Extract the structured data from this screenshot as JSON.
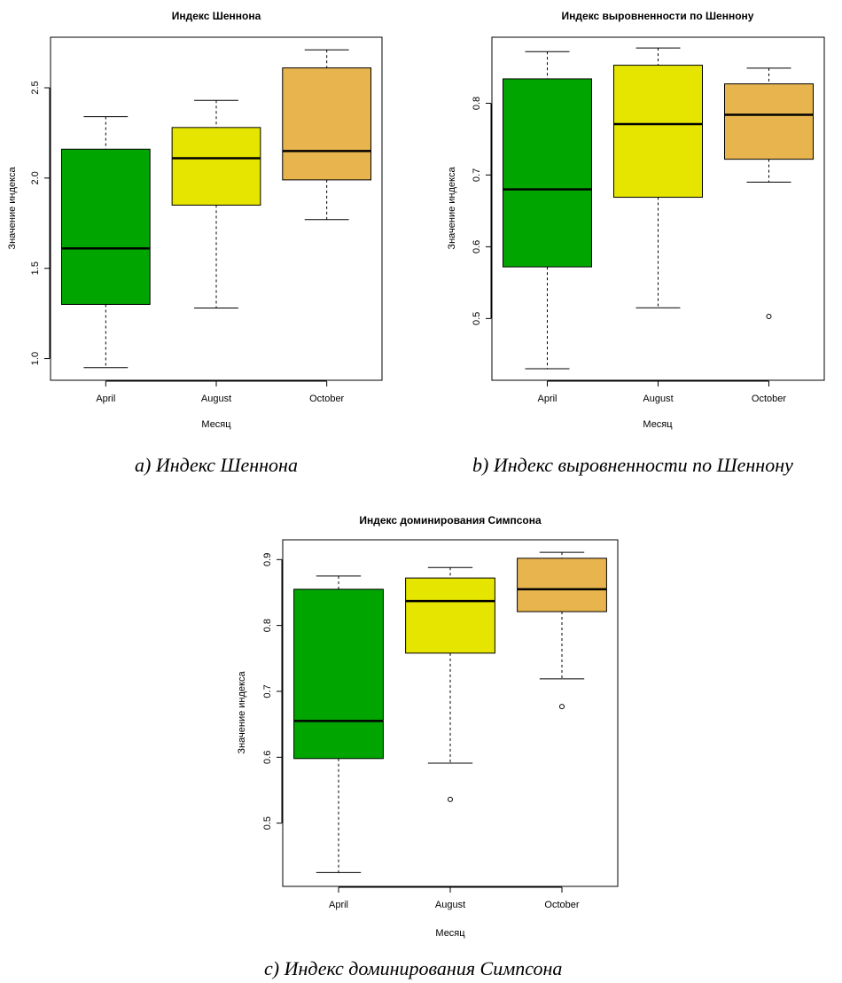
{
  "chart_data": [
    {
      "type": "box",
      "title": "Индекс Шеннона",
      "xlabel": "Месяц",
      "ylabel": "Значение индекса",
      "categories": [
        "April",
        "August",
        "October"
      ],
      "ylim": [
        0.88,
        2.78
      ],
      "yticks": [
        1.0,
        1.5,
        2.0,
        2.5
      ],
      "ytick_labels": [
        "1.0",
        "1.5",
        "2.0",
        "2.5"
      ],
      "boxes": [
        {
          "min": 0.95,
          "q1": 1.3,
          "median": 1.61,
          "q3": 2.16,
          "max": 2.34,
          "color": "#00a500",
          "outliers": []
        },
        {
          "min": 1.28,
          "q1": 1.85,
          "median": 2.11,
          "q3": 2.28,
          "max": 2.43,
          "color": "#e5e500",
          "outliers": []
        },
        {
          "min": 1.77,
          "q1": 1.99,
          "median": 2.15,
          "q3": 2.61,
          "max": 2.71,
          "color": "#e8b44e",
          "outliers": []
        }
      ],
      "caption": "a) Индекс Шеннона"
    },
    {
      "type": "box",
      "title": "Индекс выровненности по Шеннону",
      "xlabel": "Месяц",
      "ylabel": "Значение индекса",
      "categories": [
        "April",
        "August",
        "October"
      ],
      "ylim": [
        0.414,
        0.892
      ],
      "yticks": [
        0.5,
        0.6,
        0.7,
        0.8
      ],
      "ytick_labels": [
        "0.5",
        "0.6",
        "0.7",
        "0.8"
      ],
      "boxes": [
        {
          "min": 0.43,
          "q1": 0.572,
          "median": 0.68,
          "q3": 0.834,
          "max": 0.872,
          "color": "#00a500",
          "outliers": []
        },
        {
          "min": 0.515,
          "q1": 0.669,
          "median": 0.771,
          "q3": 0.853,
          "max": 0.877,
          "color": "#e5e500",
          "outliers": []
        },
        {
          "min": 0.69,
          "q1": 0.722,
          "median": 0.784,
          "q3": 0.827,
          "max": 0.849,
          "color": "#e8b44e",
          "outliers": [
            0.503
          ]
        }
      ],
      "caption": "b) Индекс выровненности по Шеннону"
    },
    {
      "type": "box",
      "title": "Индекс доминирования Симпсона",
      "xlabel": "Месяц",
      "ylabel": "Значение индекса",
      "categories": [
        "April",
        "August",
        "October"
      ],
      "ylim": [
        0.404,
        0.93
      ],
      "yticks": [
        0.5,
        0.6,
        0.7,
        0.8,
        0.9
      ],
      "ytick_labels": [
        "0.5",
        "0.6",
        "0.7",
        "0.8",
        "0.9"
      ],
      "boxes": [
        {
          "min": 0.425,
          "q1": 0.598,
          "median": 0.655,
          "q3": 0.855,
          "max": 0.875,
          "color": "#00a500",
          "outliers": []
        },
        {
          "min": 0.591,
          "q1": 0.758,
          "median": 0.837,
          "q3": 0.872,
          "max": 0.888,
          "color": "#e5e500",
          "outliers": [
            0.536
          ]
        },
        {
          "min": 0.719,
          "q1": 0.821,
          "median": 0.855,
          "q3": 0.902,
          "max": 0.911,
          "color": "#e8b44e",
          "outliers": [
            0.677
          ]
        }
      ],
      "caption": "c) Индекс доминирования Симпсона"
    }
  ]
}
